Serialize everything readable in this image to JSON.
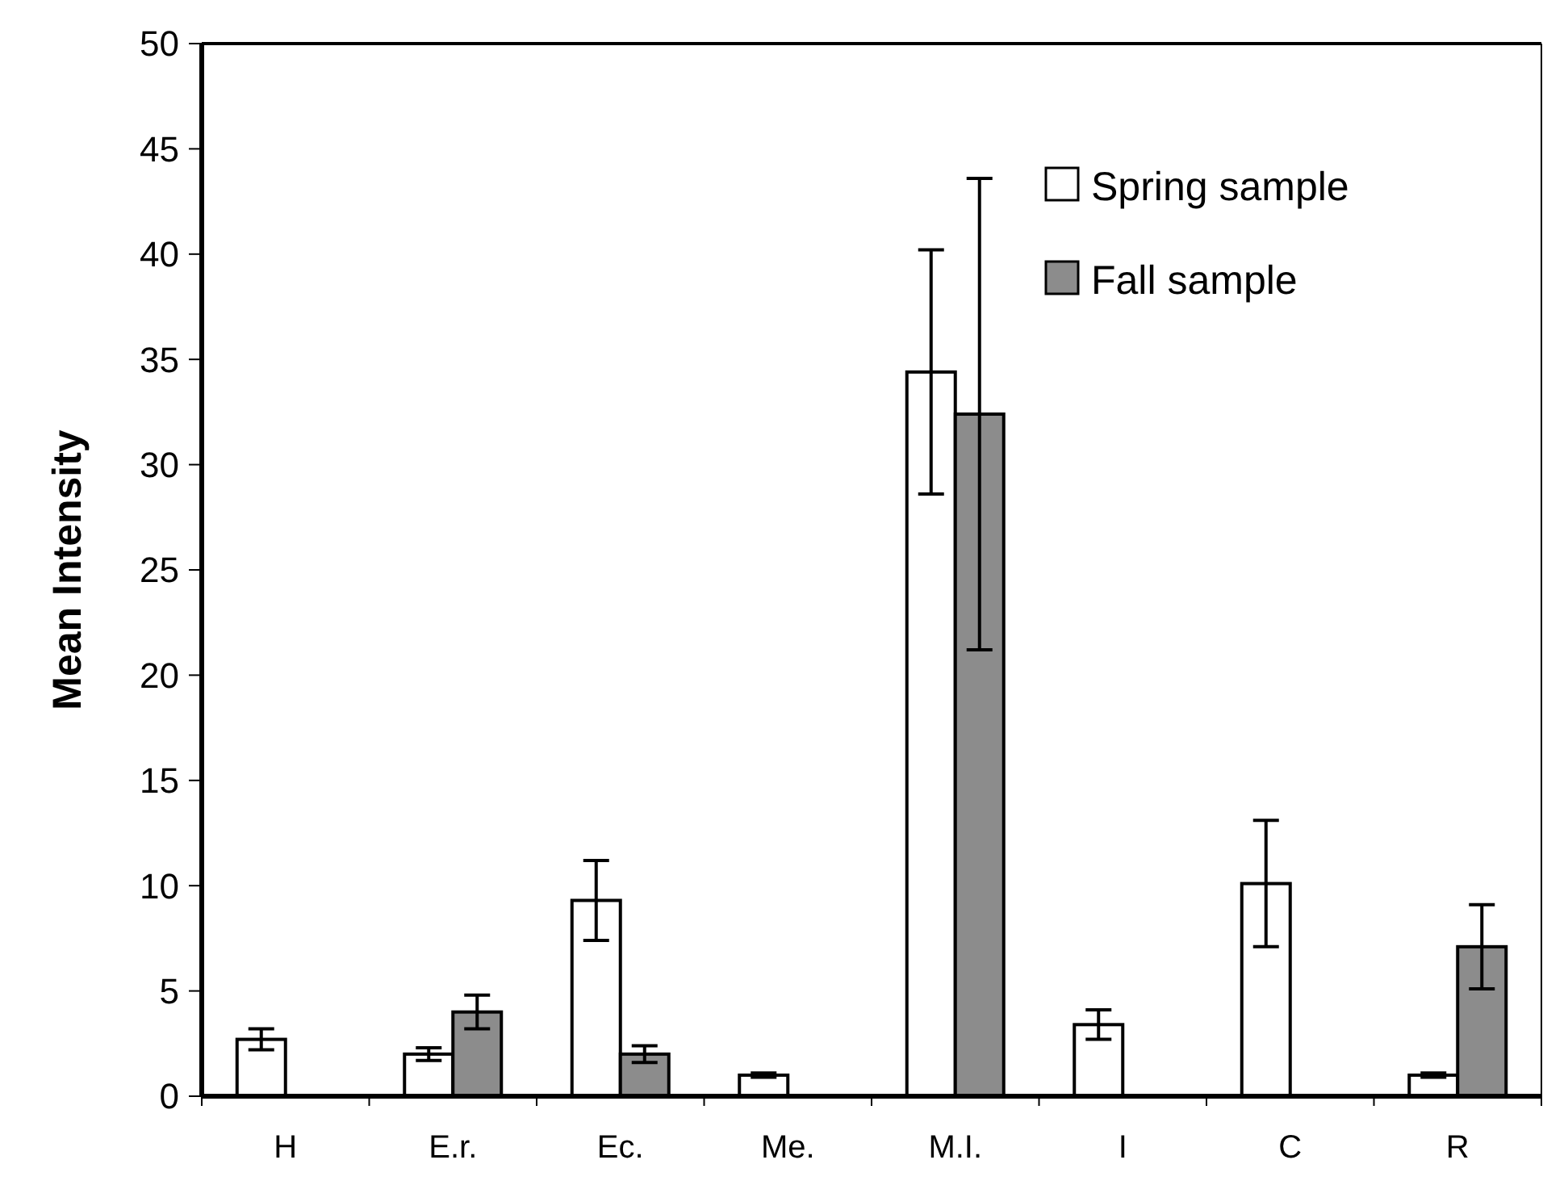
{
  "chart_data": {
    "type": "bar",
    "ylabel": "Mean Intensity",
    "categories": [
      "H",
      "E.r.",
      "Ec.",
      "Me.",
      "M.I.",
      "I",
      "C",
      "R"
    ],
    "series": [
      {
        "name": "Spring sample",
        "color": "#ffffff",
        "values": [
          2.7,
          2.0,
          9.3,
          1.0,
          34.4,
          3.4,
          10.1,
          1.0
        ],
        "errors": [
          0.5,
          0.3,
          1.9,
          0.1,
          5.8,
          0.7,
          3.0,
          0.1
        ]
      },
      {
        "name": "Fall sample",
        "color": "#8c8c8c",
        "values": [
          0,
          4.0,
          2.0,
          0,
          32.4,
          0,
          0,
          7.1
        ],
        "errors": [
          null,
          0.8,
          0.4,
          null,
          11.2,
          null,
          null,
          2.0
        ]
      }
    ],
    "ylim": [
      0,
      50
    ],
    "yticks": [
      0,
      5,
      10,
      15,
      20,
      25,
      30,
      35,
      40,
      45,
      50
    ],
    "grid": false,
    "legend": "top right"
  }
}
